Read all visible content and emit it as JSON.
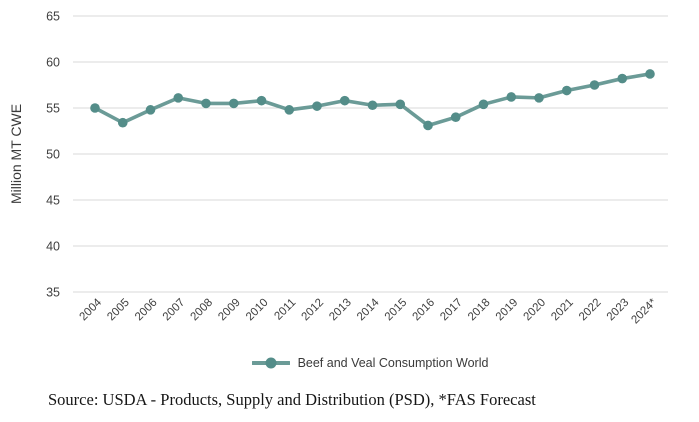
{
  "figure": {
    "background": "#ffffff"
  },
  "chart_data": {
    "type": "line",
    "categories": [
      "2004",
      "2005",
      "2006",
      "2007",
      "2008",
      "2009",
      "2010",
      "2011",
      "2012",
      "2013",
      "2014",
      "2015",
      "2016",
      "2017",
      "2018",
      "2019",
      "2020",
      "2021",
      "2022",
      "2023",
      "2024*"
    ],
    "series": [
      {
        "name": "Beef and Veal Consumption World",
        "values": [
          55.0,
          53.4,
          54.8,
          56.1,
          55.5,
          55.5,
          55.8,
          54.8,
          55.2,
          55.8,
          55.3,
          55.4,
          53.1,
          54.0,
          55.4,
          56.2,
          56.1,
          56.9,
          57.5,
          58.2,
          58.7
        ],
        "line_color": "#6b9b97",
        "marker_color": "#548d89"
      }
    ],
    "title": "",
    "xlabel": "",
    "ylabel": "Million MT CWE",
    "ylim": [
      35,
      65
    ],
    "yticks": [
      65,
      60,
      55,
      50,
      45,
      40,
      35
    ],
    "grid": true,
    "gridline_color": "#d9d9d9",
    "tick_label_color": "#3f3f3f",
    "legend_position": "bottom"
  },
  "source_note": "Source: USDA - Products, Supply and Distribution (PSD), *FAS Forecast"
}
